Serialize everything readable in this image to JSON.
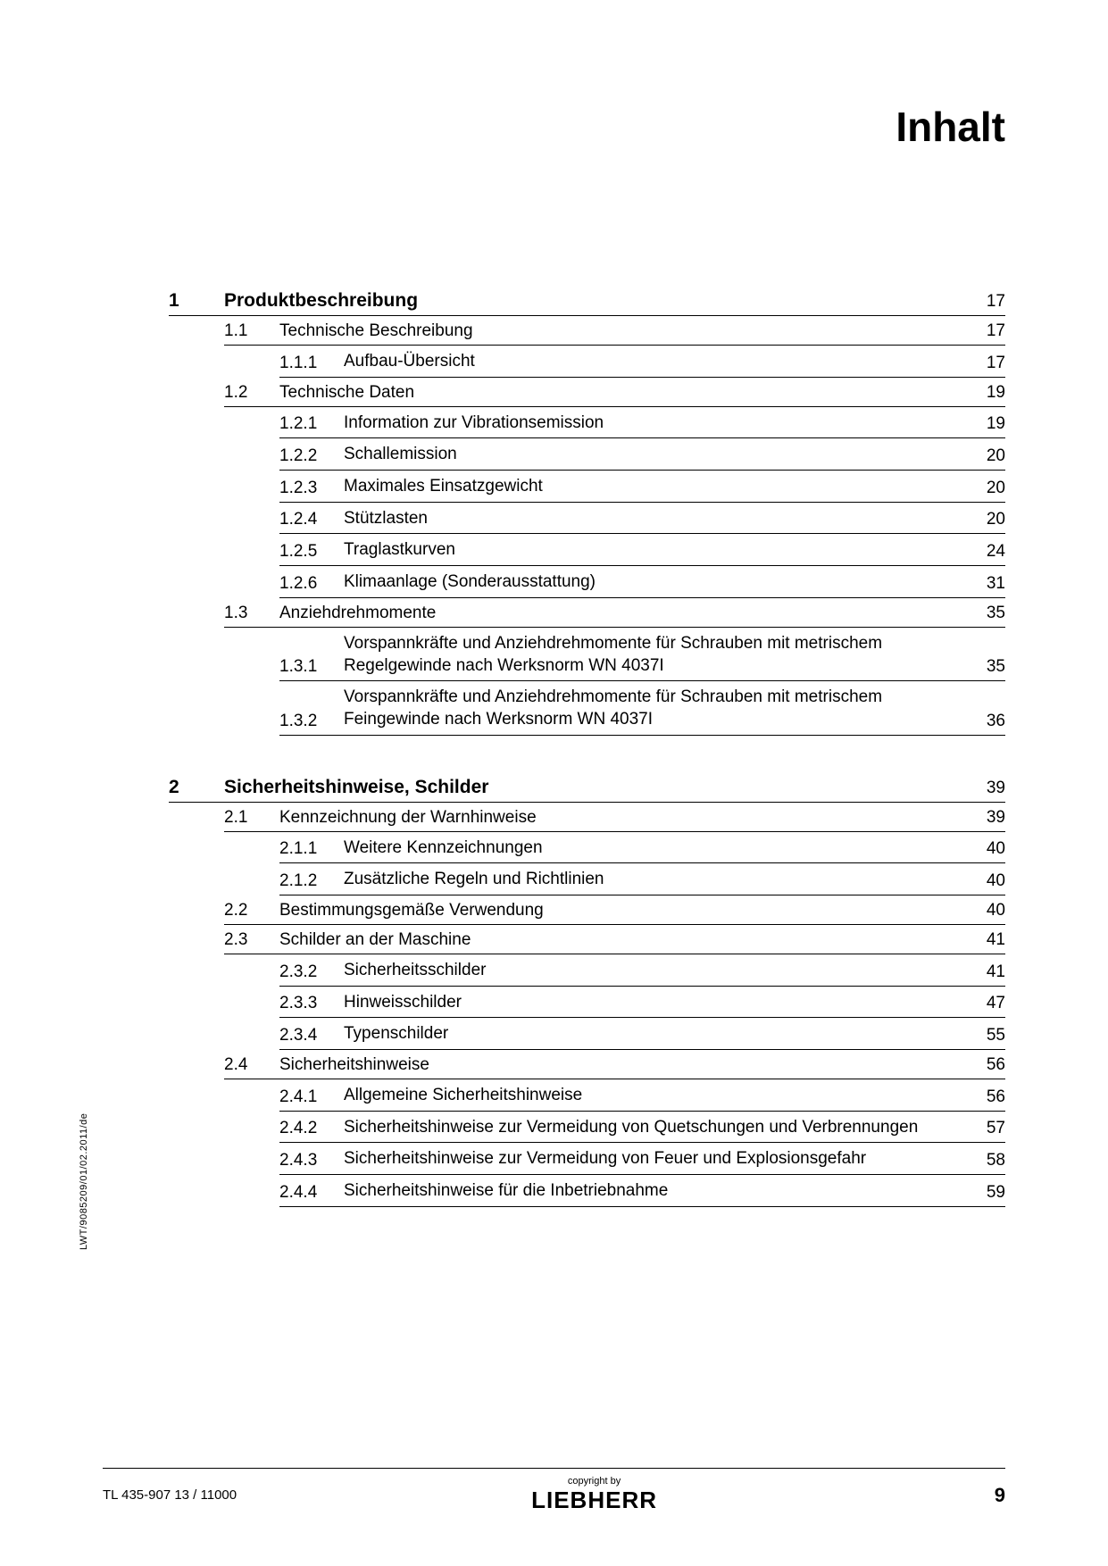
{
  "title": "Inhalt",
  "side_text": "LWT/9085209/01/02.2011/de",
  "footer": {
    "left": "TL 435-907 13 / 11000",
    "copyright": "copyright by",
    "brand": "LIEBHERR",
    "page": "9"
  },
  "sections": [
    {
      "num": "1",
      "title": "Produktbeschreibung",
      "page": "17",
      "subs": [
        {
          "num": "1.1",
          "title": "Technische Beschreibung",
          "page": "17",
          "items": [
            {
              "num": "1.1.1",
              "title": "Aufbau-Übersicht",
              "page": "17"
            }
          ]
        },
        {
          "num": "1.2",
          "title": "Technische Daten",
          "page": "19",
          "items": [
            {
              "num": "1.2.1",
              "title": "Information zur Vibrationsemission",
              "page": "19"
            },
            {
              "num": "1.2.2",
              "title": "Schallemission",
              "page": "20"
            },
            {
              "num": "1.2.3",
              "title": "Maximales Einsatzgewicht",
              "page": "20"
            },
            {
              "num": "1.2.4",
              "title": "Stützlasten",
              "page": "20"
            },
            {
              "num": "1.2.5",
              "title": "Traglastkurven",
              "page": "24"
            },
            {
              "num": "1.2.6",
              "title": "Klimaanlage (Sonderausstattung)",
              "page": "31"
            }
          ]
        },
        {
          "num": "1.3",
          "title": "Anziehdrehmomente",
          "page": "35",
          "items": [
            {
              "num": "1.3.1",
              "title": "Vorspannkräfte und Anziehdrehmomente für Schrauben mit metrischem Regelgewinde nach Werksnorm WN 4037I",
              "page": "35"
            },
            {
              "num": "1.3.2",
              "title": "Vorspannkräfte und Anziehdrehmomente für Schrauben mit metrischem Feingewinde nach Werksnorm WN 4037I",
              "page": "36"
            }
          ]
        }
      ]
    },
    {
      "num": "2",
      "title": "Sicherheitshinweise, Schilder",
      "page": "39",
      "subs": [
        {
          "num": "2.1",
          "title": "Kennzeichnung der Warnhinweise",
          "page": "39",
          "items": [
            {
              "num": "2.1.1",
              "title": "Weitere Kennzeichnungen",
              "page": "40"
            },
            {
              "num": "2.1.2",
              "title": "Zusätzliche Regeln und Richtlinien",
              "page": "40"
            }
          ]
        },
        {
          "num": "2.2",
          "title": "Bestimmungsgemäße Verwendung",
          "page": "40",
          "items": []
        },
        {
          "num": "2.3",
          "title": "Schilder an der Maschine",
          "page": "41",
          "items": [
            {
              "num": "2.3.2",
              "title": "Sicherheitsschilder",
              "page": "41"
            },
            {
              "num": "2.3.3",
              "title": "Hinweisschilder",
              "page": "47"
            },
            {
              "num": "2.3.4",
              "title": "Typenschilder",
              "page": "55"
            }
          ]
        },
        {
          "num": "2.4",
          "title": "Sicherheitshinweise",
          "page": "56",
          "items": [
            {
              "num": "2.4.1",
              "title": "Allgemeine Sicherheitshinweise",
              "page": "56"
            },
            {
              "num": "2.4.2",
              "title": "Sicherheitshinweise zur Vermeidung von Quetschungen und Verbrennungen",
              "page": "57"
            },
            {
              "num": "2.4.3",
              "title": "Sicherheitshinweise zur Vermeidung von Feuer und Explosionsgefahr",
              "page": "58"
            },
            {
              "num": "2.4.4",
              "title": "Sicherheitshinweise für die Inbetriebnahme",
              "page": "59"
            }
          ]
        }
      ]
    }
  ]
}
